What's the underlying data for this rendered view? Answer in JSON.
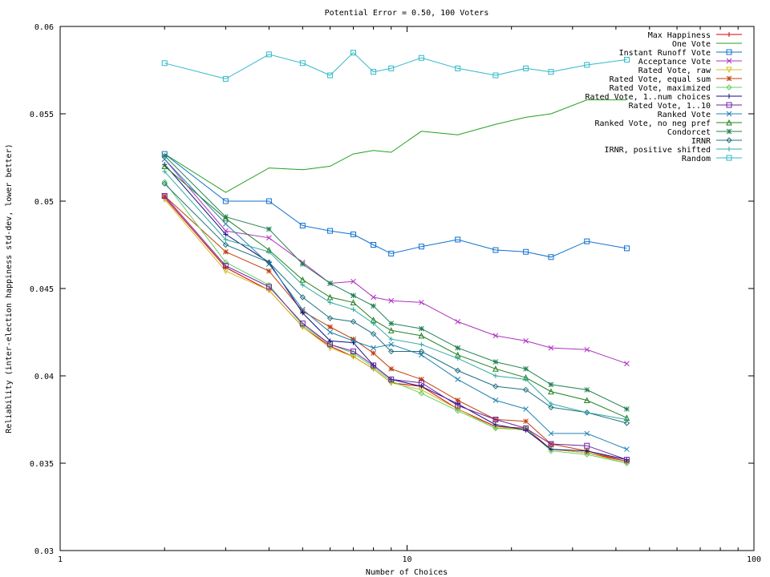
{
  "chart_data": {
    "type": "line",
    "title": "Potential Error = 0.50, 100 Voters",
    "xlabel": "Number of Choices",
    "ylabel": "Reliability (inter-election happiness std-dev, lower better)",
    "xscale": "log",
    "xlim": [
      1,
      100
    ],
    "ylim": [
      0.03,
      0.06
    ],
    "xticks": [
      1,
      10,
      100
    ],
    "xtick_labels": [
      "1",
      "10",
      "100"
    ],
    "yticks": [
      0.03,
      0.035,
      0.04,
      0.045,
      0.05,
      0.055,
      0.06
    ],
    "ytick_labels": [
      "0.03",
      "0.035",
      "0.04",
      "0.045",
      "0.05",
      "0.055",
      "0.06"
    ],
    "grid": false,
    "legend_position": "top-right",
    "x": [
      2,
      3,
      4,
      5,
      6,
      7,
      8,
      9,
      11,
      14,
      18,
      22,
      26,
      33,
      43
    ],
    "series": [
      {
        "name": "Max Happiness",
        "color": "#d40000",
        "marker": "plus",
        "values": [
          0.0502,
          0.0462,
          0.0449,
          0.0428,
          0.0417,
          0.0411,
          0.0404,
          0.0396,
          0.0394,
          0.0381,
          0.0371,
          0.037,
          0.0358,
          0.0356,
          0.0351
        ]
      },
      {
        "name": "One Vote",
        "color": "#20a020",
        "marker": "cross",
        "values": [
          0.0527,
          0.0505,
          0.0519,
          0.0518,
          0.052,
          0.0527,
          0.0529,
          0.0528,
          0.054,
          0.0538,
          0.0544,
          0.0548,
          0.055,
          0.0558,
          0.0558
        ]
      },
      {
        "name": "Instant Runoff Vote",
        "color": "#1070d0",
        "marker": "square",
        "values": [
          0.0527,
          0.05,
          0.05,
          0.0486,
          0.0483,
          0.0481,
          0.0475,
          0.047,
          0.0474,
          0.0478,
          0.0472,
          0.0471,
          0.0468,
          0.0477,
          0.0473
        ]
      },
      {
        "name": "Acceptance Vote",
        "color": "#b030c0",
        "marker": "x",
        "values": [
          0.0524,
          0.0483,
          0.0479,
          0.0465,
          0.0453,
          0.0454,
          0.0445,
          0.0443,
          0.0442,
          0.0431,
          0.0423,
          0.042,
          0.0416,
          0.0415,
          0.0407
        ]
      },
      {
        "name": "Rated Vote, raw",
        "color": "#d0c020",
        "marker": "triangle-down",
        "values": [
          0.0501,
          0.046,
          0.0449,
          0.0428,
          0.0416,
          0.0411,
          0.0404,
          0.0396,
          0.0392,
          0.0381,
          0.037,
          0.0369,
          0.0358,
          0.0356,
          0.035
        ]
      },
      {
        "name": "Rated Vote, equal sum",
        "color": "#c04010",
        "marker": "asterisk",
        "values": [
          0.0503,
          0.0471,
          0.046,
          0.0437,
          0.0428,
          0.0421,
          0.0413,
          0.0404,
          0.0398,
          0.0386,
          0.0375,
          0.0374,
          0.0361,
          0.0357,
          0.0351
        ]
      },
      {
        "name": "Rated Vote, maximized",
        "color": "#60d060",
        "marker": "diamond",
        "values": [
          0.0511,
          0.0465,
          0.0452,
          0.0429,
          0.0418,
          0.0413,
          0.0405,
          0.0397,
          0.039,
          0.038,
          0.037,
          0.037,
          0.0357,
          0.0355,
          0.035
        ]
      },
      {
        "name": "Rated Vote, 1..num choices",
        "color": "#101080",
        "marker": "plus",
        "values": [
          0.0521,
          0.0481,
          0.0465,
          0.0436,
          0.042,
          0.0419,
          0.0406,
          0.0398,
          0.0394,
          0.0384,
          0.0372,
          0.0369,
          0.0358,
          0.0357,
          0.0352
        ]
      },
      {
        "name": "Rated Vote, 1..10",
        "color": "#7020a0",
        "marker": "square",
        "values": [
          0.0503,
          0.0463,
          0.0451,
          0.043,
          0.0418,
          0.0414,
          0.0406,
          0.0398,
          0.0396,
          0.0383,
          0.0375,
          0.037,
          0.0361,
          0.036,
          0.0352
        ]
      },
      {
        "name": "Ranked Vote",
        "color": "#2080b0",
        "marker": "x",
        "values": [
          0.0524,
          0.0487,
          0.0464,
          0.0438,
          0.0425,
          0.042,
          0.0416,
          0.0418,
          0.0412,
          0.0398,
          0.0386,
          0.0381,
          0.0367,
          0.0367,
          0.0358
        ]
      },
      {
        "name": "Ranked Vote, no neg pref",
        "color": "#208020",
        "marker": "triangle",
        "values": [
          0.052,
          0.049,
          0.0472,
          0.0455,
          0.0445,
          0.0442,
          0.0432,
          0.0426,
          0.0423,
          0.0412,
          0.0404,
          0.0399,
          0.0391,
          0.0386,
          0.0376
        ]
      },
      {
        "name": "Condorcet",
        "color": "#208050",
        "marker": "asterisk",
        "values": [
          0.0526,
          0.0491,
          0.0484,
          0.0464,
          0.0453,
          0.0446,
          0.044,
          0.043,
          0.0427,
          0.0416,
          0.0408,
          0.0404,
          0.0395,
          0.0392,
          0.0381
        ]
      },
      {
        "name": "IRNR",
        "color": "#207080",
        "marker": "diamond",
        "values": [
          0.051,
          0.0475,
          0.0465,
          0.0445,
          0.0433,
          0.0431,
          0.0424,
          0.0414,
          0.0414,
          0.0403,
          0.0394,
          0.0392,
          0.0382,
          0.0379,
          0.0373
        ]
      },
      {
        "name": "IRNR, positive shifted",
        "color": "#30a8a0",
        "marker": "plus",
        "values": [
          0.0517,
          0.0478,
          0.0471,
          0.0452,
          0.0442,
          0.0438,
          0.043,
          0.0421,
          0.0418,
          0.041,
          0.04,
          0.0398,
          0.0384,
          0.0379,
          0.0375
        ]
      },
      {
        "name": "Random",
        "color": "#30b8c8",
        "marker": "square",
        "values": [
          0.0579,
          0.057,
          0.0584,
          0.0579,
          0.0572,
          0.0585,
          0.0574,
          0.0576,
          0.0582,
          0.0576,
          0.0572,
          0.0576,
          0.0574,
          0.0578,
          0.0581
        ]
      }
    ]
  }
}
